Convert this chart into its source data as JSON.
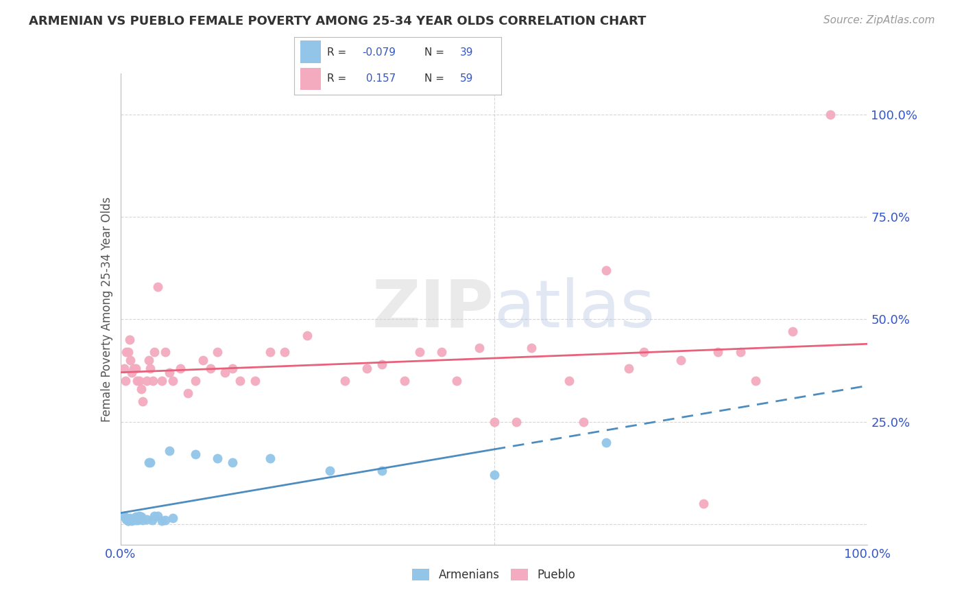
{
  "title": "ARMENIAN VS PUEBLO FEMALE POVERTY AMONG 25-34 YEAR OLDS CORRELATION CHART",
  "source": "Source: ZipAtlas.com",
  "ylabel": "Female Poverty Among 25-34 Year Olds",
  "xlim": [
    0.0,
    1.0
  ],
  "ylim": [
    -0.05,
    1.1
  ],
  "ytick_positions": [
    0.0,
    0.25,
    0.5,
    0.75,
    1.0
  ],
  "ytick_labels": [
    "",
    "25.0%",
    "50.0%",
    "75.0%",
    "100.0%"
  ],
  "armenian_R": -0.079,
  "armenian_N": 39,
  "pueblo_R": 0.157,
  "pueblo_N": 59,
  "armenian_color": "#92C5E8",
  "pueblo_color": "#F4AABF",
  "armenian_line_color": "#4C8CBF",
  "pueblo_line_color": "#E8607A",
  "watermark_zip": "ZIP",
  "watermark_atlas": "atlas",
  "background_color": "#FFFFFF",
  "grid_color": "#CCCCCC",
  "title_color": "#333333",
  "axis_label_color": "#555555",
  "tick_color": "#3355CC",
  "armenian_x": [
    0.005,
    0.007,
    0.008,
    0.009,
    0.01,
    0.01,
    0.01,
    0.012,
    0.013,
    0.015,
    0.015,
    0.015,
    0.018,
    0.02,
    0.02,
    0.022,
    0.023,
    0.025,
    0.025,
    0.028,
    0.03,
    0.035,
    0.038,
    0.04,
    0.042,
    0.045,
    0.05,
    0.055,
    0.06,
    0.065,
    0.07,
    0.1,
    0.13,
    0.15,
    0.2,
    0.28,
    0.35,
    0.5,
    0.65
  ],
  "armenian_y": [
    0.02,
    0.015,
    0.012,
    0.01,
    0.01,
    0.008,
    0.008,
    0.015,
    0.012,
    0.01,
    0.01,
    0.008,
    0.012,
    0.018,
    0.01,
    0.015,
    0.01,
    0.02,
    0.015,
    0.018,
    0.01,
    0.012,
    0.15,
    0.15,
    0.01,
    0.02,
    0.02,
    0.008,
    0.01,
    0.18,
    0.015,
    0.17,
    0.16,
    0.15,
    0.16,
    0.13,
    0.13,
    0.12,
    0.2
  ],
  "pueblo_x": [
    0.005,
    0.007,
    0.008,
    0.01,
    0.012,
    0.013,
    0.015,
    0.018,
    0.02,
    0.022,
    0.025,
    0.028,
    0.03,
    0.035,
    0.038,
    0.04,
    0.043,
    0.045,
    0.05,
    0.055,
    0.06,
    0.065,
    0.07,
    0.08,
    0.09,
    0.1,
    0.11,
    0.12,
    0.13,
    0.14,
    0.15,
    0.16,
    0.18,
    0.2,
    0.22,
    0.25,
    0.3,
    0.33,
    0.35,
    0.38,
    0.4,
    0.43,
    0.45,
    0.48,
    0.5,
    0.53,
    0.55,
    0.6,
    0.62,
    0.65,
    0.68,
    0.7,
    0.75,
    0.78,
    0.8,
    0.83,
    0.85,
    0.9,
    0.95
  ],
  "pueblo_y": [
    0.38,
    0.35,
    0.42,
    0.42,
    0.45,
    0.4,
    0.37,
    0.38,
    0.38,
    0.35,
    0.35,
    0.33,
    0.3,
    0.35,
    0.4,
    0.38,
    0.35,
    0.42,
    0.58,
    0.35,
    0.42,
    0.37,
    0.35,
    0.38,
    0.32,
    0.35,
    0.4,
    0.38,
    0.42,
    0.37,
    0.38,
    0.35,
    0.35,
    0.42,
    0.42,
    0.46,
    0.35,
    0.38,
    0.39,
    0.35,
    0.42,
    0.42,
    0.35,
    0.43,
    0.25,
    0.25,
    0.43,
    0.35,
    0.25,
    0.62,
    0.38,
    0.42,
    0.4,
    0.05,
    0.42,
    0.42,
    0.35,
    0.47,
    1.0
  ]
}
